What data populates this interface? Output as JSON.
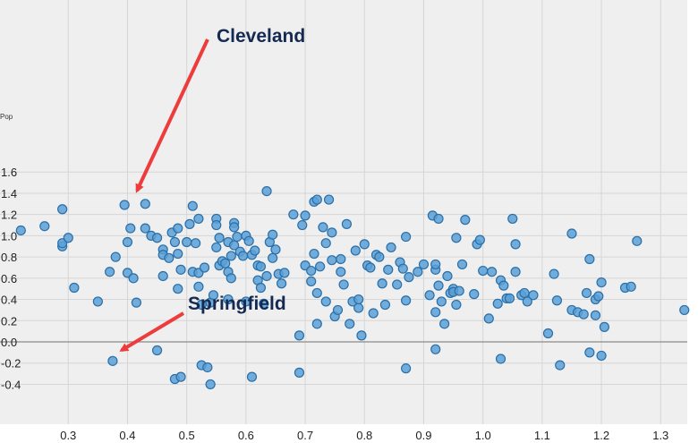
{
  "chart_data": {
    "type": "scatter",
    "ylabel": "Pop",
    "xlim": [
      0.215,
      1.34
    ],
    "ylim": [
      -0.4,
      1.6
    ],
    "x_ticks": [
      0.3,
      0.4,
      0.5,
      0.6,
      0.7,
      0.8,
      0.9,
      1.0,
      1.1,
      1.2,
      1.3
    ],
    "x_tick_labels": [
      "0.3",
      "0.4",
      "0.5",
      "0.6",
      "0.7",
      "0.8",
      "0.9",
      "1.0",
      "1.1",
      "1.2",
      "1.3"
    ],
    "y_ticks": [
      -0.4,
      -0.2,
      0.0,
      0.2,
      0.4,
      0.6,
      0.8,
      1.0,
      1.2,
      1.4,
      1.6
    ],
    "y_tick_labels": [
      "-0.4",
      "-0.2",
      "0.0",
      "0.2",
      "0.4",
      "0.6",
      "0.8",
      "1.0",
      "1.2",
      "1.4",
      "1.6"
    ],
    "grid": true,
    "zero_line": true,
    "colors": {
      "background": "#efefef",
      "grid": "#d6d6d6",
      "point_fill": "#5aa0d6",
      "point_stroke": "#2a6fa8",
      "arrow": "#ee3b3b",
      "label": "#142a52",
      "zero_line": "#8a8a8a"
    },
    "points": [
      [
        0.22,
        1.05
      ],
      [
        0.26,
        1.09
      ],
      [
        0.29,
        1.25
      ],
      [
        0.29,
        0.9
      ],
      [
        0.29,
        0.93
      ],
      [
        0.3,
        0.98
      ],
      [
        0.31,
        0.51
      ],
      [
        0.35,
        0.38
      ],
      [
        0.37,
        0.66
      ],
      [
        0.38,
        0.8
      ],
      [
        0.375,
        -0.18
      ],
      [
        0.395,
        1.29
      ],
      [
        0.4,
        0.65
      ],
      [
        0.4,
        0.94
      ],
      [
        0.405,
        1.07
      ],
      [
        0.41,
        0.6
      ],
      [
        0.415,
        0.37
      ],
      [
        0.43,
        1.3
      ],
      [
        0.43,
        1.07
      ],
      [
        0.44,
        1.0
      ],
      [
        0.45,
        0.98
      ],
      [
        0.45,
        -0.08
      ],
      [
        0.46,
        0.87
      ],
      [
        0.46,
        0.82
      ],
      [
        0.46,
        0.62
      ],
      [
        0.47,
        0.79
      ],
      [
        0.475,
        1.03
      ],
      [
        0.48,
        0.94
      ],
      [
        0.48,
        -0.35
      ],
      [
        0.485,
        1.07
      ],
      [
        0.485,
        0.83
      ],
      [
        0.485,
        0.5
      ],
      [
        0.49,
        0.68
      ],
      [
        0.49,
        -0.33
      ],
      [
        0.5,
        0.94
      ],
      [
        0.505,
        1.11
      ],
      [
        0.51,
        1.28
      ],
      [
        0.51,
        0.66
      ],
      [
        0.515,
        0.93
      ],
      [
        0.52,
        1.16
      ],
      [
        0.52,
        0.65
      ],
      [
        0.52,
        0.52
      ],
      [
        0.525,
        0.35
      ],
      [
        0.525,
        -0.22
      ],
      [
        0.53,
        0.7
      ],
      [
        0.535,
        -0.24
      ],
      [
        0.54,
        0.37
      ],
      [
        0.54,
        -0.4
      ],
      [
        0.545,
        0.44
      ],
      [
        0.55,
        1.16
      ],
      [
        0.55,
        1.1
      ],
      [
        0.55,
        0.89
      ],
      [
        0.555,
        0.98
      ],
      [
        0.555,
        0.72
      ],
      [
        0.56,
        0.76
      ],
      [
        0.565,
        0.74
      ],
      [
        0.57,
        0.94
      ],
      [
        0.57,
        0.66
      ],
      [
        0.57,
        0.4
      ],
      [
        0.575,
        0.81
      ],
      [
        0.575,
        0.6
      ],
      [
        0.58,
        1.12
      ],
      [
        0.58,
        1.08
      ],
      [
        0.58,
        0.91
      ],
      [
        0.585,
        0.99
      ],
      [
        0.59,
        0.85
      ],
      [
        0.595,
        0.81
      ],
      [
        0.6,
        1.0
      ],
      [
        0.6,
        0.38
      ],
      [
        0.605,
        0.95
      ],
      [
        0.61,
        0.82
      ],
      [
        0.61,
        -0.33
      ],
      [
        0.615,
        0.86
      ],
      [
        0.62,
        0.72
      ],
      [
        0.62,
        0.58
      ],
      [
        0.625,
        0.71
      ],
      [
        0.625,
        0.51
      ],
      [
        0.63,
        0.36
      ],
      [
        0.635,
        0.62
      ],
      [
        0.635,
        1.42
      ],
      [
        0.64,
        0.94
      ],
      [
        0.645,
        1.01
      ],
      [
        0.645,
        0.79
      ],
      [
        0.65,
        0.87
      ],
      [
        0.655,
        0.64
      ],
      [
        0.66,
        0.55
      ],
      [
        0.665,
        0.65
      ],
      [
        0.68,
        1.2
      ],
      [
        0.69,
        0.06
      ],
      [
        0.69,
        -0.29
      ],
      [
        0.695,
        1.1
      ],
      [
        0.7,
        1.19
      ],
      [
        0.7,
        0.72
      ],
      [
        0.71,
        0.67
      ],
      [
        0.71,
        0.57
      ],
      [
        0.715,
        0.83
      ],
      [
        0.715,
        1.32
      ],
      [
        0.72,
        1.34
      ],
      [
        0.72,
        0.46
      ],
      [
        0.72,
        0.17
      ],
      [
        0.725,
        0.71
      ],
      [
        0.73,
        1.08
      ],
      [
        0.735,
        0.93
      ],
      [
        0.735,
        0.38
      ],
      [
        0.74,
        1.34
      ],
      [
        0.745,
        1.03
      ],
      [
        0.745,
        0.77
      ],
      [
        0.75,
        0.24
      ],
      [
        0.755,
        0.3
      ],
      [
        0.76,
        0.78
      ],
      [
        0.76,
        0.66
      ],
      [
        0.765,
        0.54
      ],
      [
        0.77,
        1.11
      ],
      [
        0.775,
        0.17
      ],
      [
        0.78,
        0.38
      ],
      [
        0.785,
        0.86
      ],
      [
        0.79,
        0.32
      ],
      [
        0.79,
        0.4
      ],
      [
        0.795,
        0.06
      ],
      [
        0.8,
        0.92
      ],
      [
        0.805,
        0.72
      ],
      [
        0.81,
        0.7
      ],
      [
        0.815,
        0.27
      ],
      [
        0.82,
        0.82
      ],
      [
        0.825,
        0.8
      ],
      [
        0.83,
        0.55
      ],
      [
        0.835,
        0.35
      ],
      [
        0.84,
        0.68
      ],
      [
        0.845,
        0.89
      ],
      [
        0.855,
        0.54
      ],
      [
        0.86,
        0.75
      ],
      [
        0.865,
        0.69
      ],
      [
        0.87,
        0.99
      ],
      [
        0.87,
        0.39
      ],
      [
        0.87,
        -0.25
      ],
      [
        0.875,
        0.61
      ],
      [
        0.89,
        0.66
      ],
      [
        0.9,
        0.73
      ],
      [
        0.91,
        0.44
      ],
      [
        0.915,
        1.19
      ],
      [
        0.92,
        0.68
      ],
      [
        0.92,
        0.28
      ],
      [
        0.92,
        -0.07
      ],
      [
        0.92,
        0.73
      ],
      [
        0.925,
        1.16
      ],
      [
        0.925,
        0.53
      ],
      [
        0.93,
        0.38
      ],
      [
        0.935,
        0.17
      ],
      [
        0.94,
        0.62
      ],
      [
        0.945,
        0.46
      ],
      [
        0.95,
        0.5
      ],
      [
        0.95,
        0.47
      ],
      [
        0.955,
        0.35
      ],
      [
        0.955,
        0.98
      ],
      [
        0.96,
        0.48
      ],
      [
        0.965,
        0.73
      ],
      [
        0.97,
        1.15
      ],
      [
        0.985,
        0.45
      ],
      [
        0.99,
        0.92
      ],
      [
        0.995,
        0.96
      ],
      [
        1.0,
        0.67
      ],
      [
        1.01,
        0.22
      ],
      [
        1.015,
        0.66
      ],
      [
        1.025,
        0.36
      ],
      [
        1.03,
        0.58
      ],
      [
        1.035,
        0.53
      ],
      [
        1.04,
        0.41
      ],
      [
        1.045,
        0.41
      ],
      [
        1.05,
        1.16
      ],
      [
        1.055,
        0.66
      ],
      [
        1.055,
        0.92
      ],
      [
        1.065,
        0.44
      ],
      [
        1.07,
        0.46
      ],
      [
        1.075,
        0.38
      ],
      [
        1.085,
        0.44
      ],
      [
        1.03,
        -0.16
      ],
      [
        1.11,
        0.08
      ],
      [
        1.12,
        0.64
      ],
      [
        1.125,
        0.39
      ],
      [
        1.13,
        -0.22
      ],
      [
        1.15,
        1.02
      ],
      [
        1.15,
        0.3
      ],
      [
        1.16,
        0.28
      ],
      [
        1.17,
        0.26
      ],
      [
        1.175,
        0.46
      ],
      [
        1.18,
        0.78
      ],
      [
        1.18,
        -0.1
      ],
      [
        1.19,
        0.25
      ],
      [
        1.19,
        0.4
      ],
      [
        1.195,
        0.43
      ],
      [
        1.2,
        0.56
      ],
      [
        1.2,
        -0.13
      ],
      [
        1.205,
        0.14
      ],
      [
        1.24,
        0.51
      ],
      [
        1.25,
        0.52
      ],
      [
        1.26,
        0.95
      ],
      [
        1.34,
        0.3
      ]
    ],
    "annotations": [
      {
        "text": "Cleveland",
        "point": [
          0.395,
          1.29
        ]
      },
      {
        "text": "Springfield",
        "point": [
          0.375,
          -0.18
        ]
      }
    ]
  }
}
